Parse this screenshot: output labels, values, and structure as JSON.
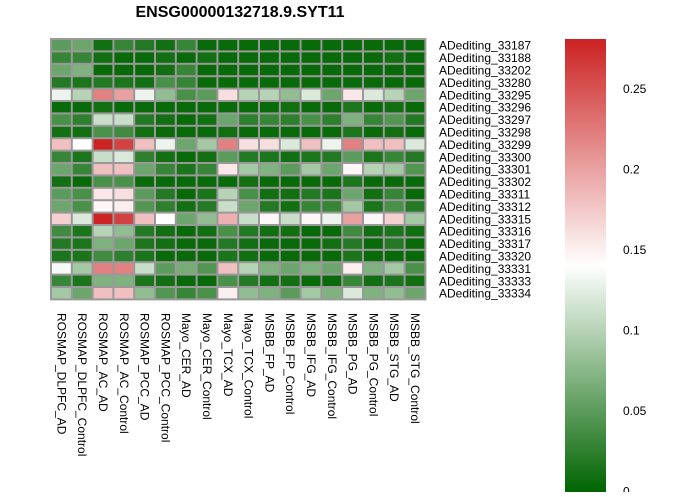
{
  "chart_data": {
    "type": "heatmap",
    "title": "ENSG00000132718.9.SYT11",
    "columns": [
      "ROSMAP_DLPFC_AD",
      "ROSMAP_DLPFC_Control",
      "ROSMAP_AC_AD",
      "ROSMAP_AC_Control",
      "ROSMAP_PCC_AD",
      "ROSMAP_PCC_Control",
      "Mayo_CER_AD",
      "Mayo_CER_Control",
      "Mayo_TCX_AD",
      "Mayo_TCX_Control",
      "MSBB_FP_AD",
      "MSBB_FP_Control",
      "MSBB_IFG_AD",
      "MSBB_IFG_Control",
      "MSBB_PG_AD",
      "MSBB_PG_Control",
      "MSBB_STG_AD",
      "MSBB_STG_Control"
    ],
    "rows": [
      "ADediting_33187",
      "ADediting_33188",
      "ADediting_33202",
      "ADediting_33280",
      "ADediting_33295",
      "ADediting_33296",
      "ADediting_33297",
      "ADediting_33298",
      "ADediting_33299",
      "ADediting_33300",
      "ADediting_33301",
      "ADediting_33302",
      "ADediting_33311",
      "ADediting_33312",
      "ADediting_33315",
      "ADediting_33316",
      "ADediting_33317",
      "ADediting_33320",
      "ADediting_33331",
      "ADediting_33333",
      "ADediting_33334"
    ],
    "values": [
      [
        0.05,
        0.06,
        0.01,
        0.03,
        0.02,
        0.01,
        0.03,
        0.005,
        0.005,
        0.005,
        0.005,
        0.005,
        0.005,
        0.005,
        0.005,
        0.005,
        0.005,
        0.005
      ],
      [
        0.03,
        0.03,
        0.01,
        0.005,
        0.005,
        0.01,
        0.005,
        0.01,
        0.005,
        0.005,
        0.005,
        0.005,
        0.005,
        0.005,
        0.005,
        0.005,
        0.01,
        0.005
      ],
      [
        0.06,
        0.07,
        0.005,
        0.005,
        0.005,
        0.01,
        0.03,
        0.005,
        0.005,
        0.005,
        0.005,
        0.005,
        0.005,
        0.005,
        0.005,
        0.005,
        0.005,
        0.005
      ],
      [
        0.02,
        0.015,
        0.02,
        0.015,
        0.01,
        0.04,
        0.03,
        0.005,
        0.005,
        0.005,
        0.005,
        0.005,
        0.005,
        0.005,
        0.005,
        0.005,
        0.005,
        0.005
      ],
      [
        0.13,
        0.1,
        0.22,
        0.2,
        0.13,
        0.08,
        0.04,
        0.05,
        0.16,
        0.1,
        0.1,
        0.08,
        0.12,
        0.06,
        0.155,
        0.12,
        0.1,
        0.06
      ],
      [
        0.005,
        0.005,
        0.01,
        0.005,
        0.005,
        0.005,
        0.005,
        0.005,
        0.005,
        0.005,
        0.005,
        0.01,
        0.005,
        0.005,
        0.015,
        0.005,
        0.01,
        0.005
      ],
      [
        0.04,
        0.025,
        0.11,
        0.11,
        0.02,
        0.01,
        0.005,
        0.01,
        0.06,
        0.025,
        0.03,
        0.025,
        0.04,
        0.025,
        0.07,
        0.03,
        0.045,
        0.02
      ],
      [
        0.01,
        0.01,
        0.04,
        0.035,
        0.01,
        0.005,
        0.005,
        0.005,
        0.01,
        0.005,
        0.005,
        0.005,
        0.005,
        0.005,
        0.015,
        0.005,
        0.01,
        0.005
      ],
      [
        0.18,
        0.14,
        0.28,
        0.26,
        0.18,
        0.13,
        0.06,
        0.09,
        0.22,
        0.16,
        0.16,
        0.12,
        0.18,
        0.13,
        0.22,
        0.18,
        0.18,
        0.12
      ],
      [
        0.03,
        0.015,
        0.11,
        0.12,
        0.025,
        0.01,
        0.005,
        0.01,
        0.05,
        0.02,
        0.015,
        0.01,
        0.015,
        0.02,
        0.05,
        0.015,
        0.03,
        0.02
      ],
      [
        0.06,
        0.03,
        0.18,
        0.18,
        0.06,
        0.03,
        0.015,
        0.03,
        0.155,
        0.09,
        0.07,
        0.05,
        0.09,
        0.06,
        0.145,
        0.1,
        0.09,
        0.045
      ],
      [
        0.01,
        0.005,
        0.04,
        0.04,
        0.005,
        0.005,
        0.005,
        0.005,
        0.005,
        0.01,
        0.005,
        0.005,
        0.005,
        0.005,
        0.015,
        0.005,
        0.005,
        0.005
      ],
      [
        0.05,
        0.04,
        0.155,
        0.16,
        0.05,
        0.02,
        0.005,
        0.015,
        0.1,
        0.04,
        0.01,
        0.01,
        0.02,
        0.015,
        0.06,
        0.01,
        0.03,
        0.005
      ],
      [
        0.06,
        0.04,
        0.145,
        0.15,
        0.045,
        0.025,
        0.01,
        0.02,
        0.11,
        0.06,
        0.02,
        0.01,
        0.03,
        0.03,
        0.09,
        0.015,
        0.04,
        0.02
      ],
      [
        0.17,
        0.12,
        0.28,
        0.26,
        0.18,
        0.14,
        0.06,
        0.08,
        0.19,
        0.11,
        0.145,
        0.11,
        0.145,
        0.13,
        0.2,
        0.145,
        0.17,
        0.09
      ],
      [
        0.035,
        0.015,
        0.1,
        0.08,
        0.02,
        0.01,
        0.005,
        0.01,
        0.04,
        0.02,
        0.01,
        0.01,
        0.005,
        0.005,
        0.035,
        0.01,
        0.015,
        0.01
      ],
      [
        0.02,
        0.015,
        0.07,
        0.06,
        0.015,
        0.01,
        0.005,
        0.005,
        0.02,
        0.01,
        0.005,
        0.005,
        0.005,
        0.01,
        0.02,
        0.005,
        0.02,
        0.005
      ],
      [
        0.015,
        0.015,
        0.035,
        0.025,
        0.015,
        0.005,
        0.005,
        0.005,
        0.015,
        0.01,
        0.005,
        0.005,
        0.005,
        0.005,
        0.015,
        0.005,
        0.005,
        0.005
      ],
      [
        0.135,
        0.09,
        0.22,
        0.22,
        0.11,
        0.05,
        0.065,
        0.045,
        0.18,
        0.1,
        0.07,
        0.06,
        0.07,
        0.06,
        0.15,
        0.07,
        0.09,
        0.04
      ],
      [
        0.03,
        0.015,
        0.07,
        0.07,
        0.015,
        0.01,
        0.005,
        0.005,
        0.04,
        0.02,
        0.01,
        0.01,
        0.005,
        0.005,
        0.03,
        0.01,
        0.015,
        0.01
      ],
      [
        0.09,
        0.06,
        0.18,
        0.18,
        0.08,
        0.045,
        0.03,
        0.04,
        0.15,
        0.08,
        0.07,
        0.05,
        0.09,
        0.07,
        0.12,
        0.07,
        0.08,
        0.06
      ]
    ],
    "color_scale": {
      "low": "#006400",
      "mid": "#ffffff",
      "high": "#cc2222",
      "min": 0,
      "mid_value": 0.14,
      "max": 0.28
    },
    "legend_ticks": [
      "0",
      "0.05",
      "0.1",
      "0.15",
      "0.2",
      "0.25"
    ],
    "legend_placement": "right",
    "grid_color": "#999999"
  }
}
